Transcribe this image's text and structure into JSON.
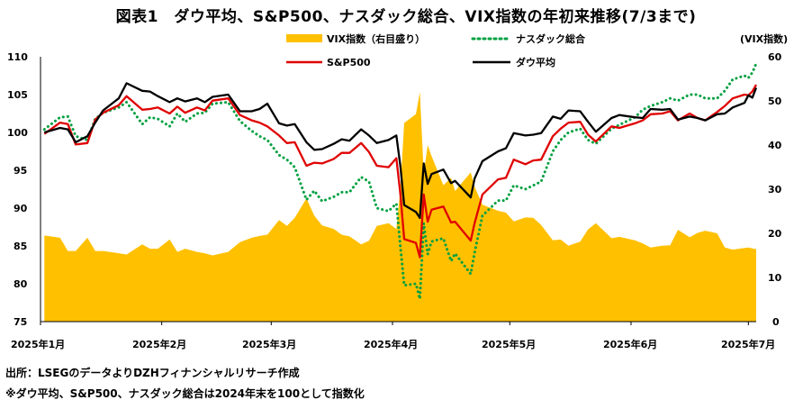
{
  "title": "図表1　ダウ平均、S&P500、ナスダック総合、VIX指数の年初来推移(7/3まで)",
  "source": "出所：LSEGのデータよりDZHフィナンシャルリサーチ作成",
  "footnote": "※ダウ平均、S&P500、ナスダック総合は2024年末を100として指数化",
  "chart_data": {
    "type": "line",
    "title": "図表1　ダウ平均、S&P500、ナスダック総合、VIX指数の年初来推移(7/3まで)",
    "x_tick_labels": [
      "2025年1月",
      "2025年2月",
      "2025年3月",
      "2025年4月",
      "2025年5月",
      "2025年6月",
      "2025年7月"
    ],
    "left_axis": {
      "ylim": [
        75,
        110
      ],
      "ticks": [
        75,
        80,
        85,
        90,
        95,
        100,
        105,
        110
      ]
    },
    "right_axis": {
      "label": "(VIX指数)",
      "ylim": [
        0,
        60
      ],
      "ticks": [
        0,
        10,
        20,
        30,
        40,
        50,
        60
      ]
    },
    "grid": false,
    "legend": {
      "placement": "top-center",
      "entries": [
        "VIX指数（右目盛り）",
        "ナスダック総合",
        "S&P500",
        "ダウ平均"
      ]
    },
    "x_domain": [
      "2025-01-01",
      "2025-07-03"
    ],
    "dates": [
      "2025-01-02",
      "2025-01-06",
      "2025-01-08",
      "2025-01-10",
      "2025-01-13",
      "2025-01-15",
      "2025-01-17",
      "2025-01-21",
      "2025-01-23",
      "2025-01-27",
      "2025-01-29",
      "2025-01-31",
      "2025-02-03",
      "2025-02-05",
      "2025-02-07",
      "2025-02-10",
      "2025-02-12",
      "2025-02-14",
      "2025-02-18",
      "2025-02-21",
      "2025-02-24",
      "2025-02-26",
      "2025-02-28",
      "2025-03-03",
      "2025-03-05",
      "2025-03-07",
      "2025-03-10",
      "2025-03-12",
      "2025-03-14",
      "2025-03-17",
      "2025-03-19",
      "2025-03-21",
      "2025-03-24",
      "2025-03-26",
      "2025-03-28",
      "2025-03-31",
      "2025-04-02",
      "2025-04-03",
      "2025-04-04",
      "2025-04-07",
      "2025-04-08",
      "2025-04-09",
      "2025-04-10",
      "2025-04-11",
      "2025-04-14",
      "2025-04-16",
      "2025-04-17",
      "2025-04-21",
      "2025-04-22",
      "2025-04-24",
      "2025-04-28",
      "2025-04-30",
      "2025-05-02",
      "2025-05-05",
      "2025-05-07",
      "2025-05-09",
      "2025-05-12",
      "2025-05-14",
      "2025-05-16",
      "2025-05-19",
      "2025-05-21",
      "2025-05-23",
      "2025-05-27",
      "2025-05-29",
      "2025-06-02",
      "2025-06-04",
      "2025-06-06",
      "2025-06-09",
      "2025-06-11",
      "2025-06-13",
      "2025-06-16",
      "2025-06-18",
      "2025-06-20",
      "2025-06-23",
      "2025-06-25",
      "2025-06-27",
      "2025-06-30",
      "2025-07-01",
      "2025-07-02",
      "2025-07-03"
    ],
    "series": [
      {
        "name": "VIX指数（右目盛り）",
        "type": "area",
        "axis": "right",
        "color": "#ffc000",
        "values": [
          19.5,
          19,
          16,
          16,
          19,
          16,
          16,
          15.5,
          15.2,
          17.5,
          16.5,
          16.5,
          18.6,
          15.8,
          16.5,
          15.8,
          15.5,
          15,
          15.8,
          18,
          19,
          19.4,
          19.7,
          23,
          21.7,
          23.5,
          27.9,
          24,
          21.8,
          21,
          19.7,
          19.3,
          17.5,
          18.3,
          21.7,
          22.3,
          21,
          30,
          45,
          47,
          52,
          33.6,
          40,
          37.5,
          30.9,
          32.6,
          29.6,
          33.8,
          30.6,
          26.5,
          25.1,
          24.7,
          22.7,
          23.6,
          23.5,
          21.9,
          18.4,
          18.6,
          17.2,
          18.1,
          20.9,
          22.3,
          18.9,
          19.2,
          18.4,
          17.7,
          16.8,
          17.2,
          17.3,
          20.8,
          19.1,
          20.1,
          20.6,
          20,
          16.8,
          16.3,
          16.7,
          16.8,
          16.6,
          16.4
        ]
      },
      {
        "name": "ナスダック総合",
        "type": "line",
        "axis": "left",
        "color": "#00a040",
        "values": [
          100.4,
          102,
          102.1,
          99.5,
          99,
          101.8,
          102.6,
          103.3,
          104,
          101.1,
          102,
          101.8,
          100.8,
          102.5,
          101.4,
          102.5,
          102.6,
          103.8,
          104,
          101.5,
          100.2,
          99.5,
          99,
          97,
          96.4,
          95.4,
          91.1,
          92.3,
          90.9,
          91.5,
          92.1,
          92.1,
          94.1,
          93.5,
          90,
          89.6,
          90.6,
          85,
          79.8,
          80,
          78,
          88,
          83.9,
          85.6,
          86,
          83,
          84,
          81.3,
          84.1,
          89,
          91,
          91,
          93,
          92.5,
          93,
          93.5,
          97.5,
          99,
          100,
          100.5,
          99,
          98.5,
          100.5,
          101,
          102,
          103,
          103.5,
          104,
          104.5,
          104.2,
          105,
          105,
          104.5,
          104.5,
          105.5,
          107,
          107.5,
          107.2,
          107.9,
          109.1
        ]
      },
      {
        "name": "S&P500",
        "type": "line",
        "axis": "left",
        "color": "#e00000",
        "values": [
          99.8,
          101.3,
          101.1,
          98.4,
          98.6,
          101.7,
          102.6,
          103.6,
          104.8,
          103,
          103.1,
          103.3,
          102.5,
          103.4,
          102.6,
          103.3,
          102.9,
          104.2,
          104.5,
          102.3,
          101.6,
          101.3,
          100.8,
          99.6,
          98.6,
          98.7,
          95.6,
          96,
          95.9,
          96.5,
          97.3,
          97.3,
          98.6,
          97.4,
          95.6,
          95.4,
          96.6,
          91.9,
          85.9,
          85.4,
          83.5,
          91.8,
          88.2,
          89.8,
          90.2,
          88.1,
          88.2,
          85.7,
          88,
          91.8,
          93.8,
          94,
          96.4,
          95.8,
          96.3,
          96.4,
          99.5,
          100.5,
          101.3,
          101.4,
          99.7,
          98.8,
          100.8,
          100.6,
          101.2,
          101.6,
          102.4,
          102.5,
          102.8,
          101.6,
          102.5,
          101.9,
          101.6,
          102.7,
          103.5,
          104.5,
          105,
          104.9,
          105.4,
          106.3
        ]
      },
      {
        "name": "ダウ平均",
        "type": "line",
        "axis": "left",
        "color": "#000000",
        "values": [
          100,
          100.6,
          100.4,
          98.7,
          99.5,
          101.3,
          102.9,
          104.5,
          106.5,
          105.5,
          105.4,
          104.8,
          104,
          104.5,
          104.1,
          104.5,
          104,
          104.7,
          105,
          102.8,
          102.8,
          103.1,
          103.8,
          101.2,
          100.9,
          101.1,
          98.7,
          97.7,
          97.8,
          98.5,
          99.1,
          98.9,
          100.4,
          99.6,
          98.6,
          99,
          99.6,
          95.6,
          90.4,
          89.5,
          88.7,
          95.9,
          93.2,
          94.5,
          95.1,
          93.3,
          93.6,
          91.4,
          93.9,
          96.2,
          97.5,
          97.9,
          99.9,
          99.6,
          99.7,
          99.9,
          102.1,
          101.8,
          102.9,
          102.8,
          101.4,
          100.1,
          101.9,
          102.3,
          102,
          101.9,
          103.1,
          103,
          103.1,
          101.7,
          102.1,
          101.9,
          101.6,
          102.4,
          102.5,
          103.3,
          103.9,
          104.9,
          104.6,
          105.9
        ]
      }
    ]
  },
  "labels": {
    "left_ticks": [
      "110",
      "105",
      "100",
      "95",
      "90",
      "85",
      "80",
      "75"
    ],
    "right_ticks": [
      "60",
      "50",
      "40",
      "30",
      "20",
      "10",
      "0"
    ],
    "right_axis_title": "(VIX指数)",
    "x_ticks": [
      "2025年1月",
      "2025年2月",
      "2025年3月",
      "2025年4月",
      "2025年5月",
      "2025年6月",
      "2025年7月"
    ],
    "legend": {
      "vix": "VIX指数（右目盛り）",
      "nasdaq": "ナスダック総合",
      "sp500": "S&P500",
      "dow": "ダウ平均"
    }
  },
  "colors": {
    "vix": "#ffc000",
    "nasdaq": "#00a040",
    "sp500": "#e00000",
    "dow": "#000000"
  }
}
